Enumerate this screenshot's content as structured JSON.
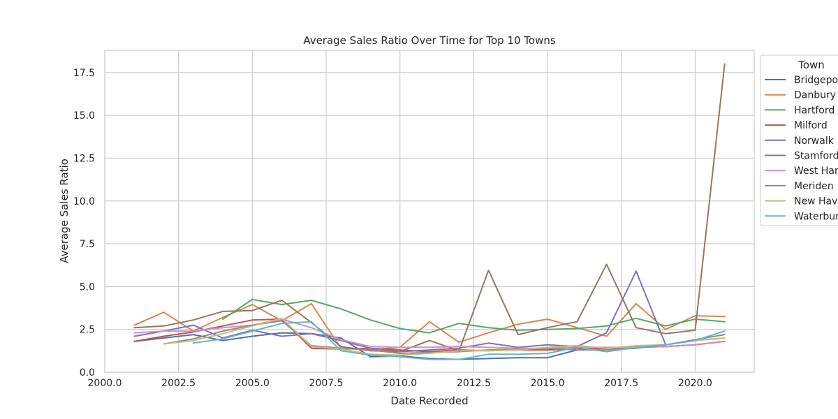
{
  "chart_data": {
    "type": "line",
    "title": "Average Sales Ratio Over Time for Top 10 Towns",
    "xlabel": "Date Recorded",
    "ylabel": "Average Sales Ratio",
    "xlim": [
      2000,
      2022
    ],
    "ylim": [
      0,
      18.8
    ],
    "xticks": [
      2000,
      2002.5,
      2005,
      2007.5,
      2010,
      2012.5,
      2015,
      2017.5,
      2020
    ],
    "xtick_labels": [
      "2000.0",
      "2002.5",
      "2005.0",
      "2007.5",
      "2010.0",
      "2012.5",
      "2015.0",
      "2017.5",
      "2020.0"
    ],
    "yticks": [
      0,
      2.5,
      5,
      7.5,
      10,
      12.5,
      15,
      17.5
    ],
    "ytick_labels": [
      "0.0",
      "2.5",
      "5.0",
      "7.5",
      "10.0",
      "12.5",
      "15.0",
      "17.5"
    ],
    "grid": true,
    "legend": {
      "title": "Town",
      "placement": "outside top-right"
    },
    "series": [
      {
        "name": "Bridgeport",
        "color": "#4c72b0",
        "x": [
          2001,
          2002,
          2003,
          2004,
          2005,
          2006,
          2007,
          2008,
          2009,
          2010,
          2011,
          2012,
          2013,
          2014,
          2015,
          2016,
          2017,
          2018,
          2019,
          2020,
          2021
        ],
        "y": [
          1.8,
          2.0,
          2.2,
          1.85,
          2.1,
          2.3,
          2.25,
          2.0,
          0.9,
          0.95,
          0.8,
          0.75,
          0.8,
          0.85,
          0.85,
          1.3,
          1.4,
          1.45,
          1.5,
          1.6,
          1.8
        ]
      },
      {
        "name": "Danbury",
        "color": "#dd8452",
        "x": [
          2001,
          2002,
          2003,
          2004,
          2005,
          2006,
          2007,
          2008,
          2009,
          2010,
          2011,
          2012,
          2013,
          2014,
          2015,
          2016,
          2017,
          2018,
          2019,
          2020,
          2021
        ],
        "y": [
          2.75,
          3.5,
          2.4,
          3.2,
          3.95,
          3.0,
          4.0,
          1.4,
          1.3,
          1.45,
          2.95,
          1.75,
          2.3,
          2.8,
          3.1,
          2.6,
          2.1,
          4.0,
          2.5,
          3.3,
          3.25
        ]
      },
      {
        "name": "Hartford",
        "color": "#55a868",
        "x": [
          2004,
          2005,
          2006,
          2007,
          2008,
          2009,
          2010,
          2011,
          2012,
          2013,
          2014,
          2015,
          2016,
          2017,
          2018,
          2019,
          2020,
          2021
        ],
        "y": [
          3.1,
          4.25,
          3.95,
          4.2,
          3.7,
          3.05,
          2.55,
          2.3,
          2.85,
          2.6,
          2.45,
          2.5,
          2.55,
          2.7,
          3.15,
          2.7,
          3.1,
          2.95
        ]
      },
      {
        "name": "Milford",
        "color": "#c44e52",
        "x": [
          2001,
          2002,
          2003,
          2004,
          2005,
          2006,
          2007,
          2008,
          2009,
          2010,
          2011,
          2012,
          2013,
          2014,
          2015,
          2016,
          2017,
          2018,
          2019,
          2020,
          2021
        ],
        "y": [
          1.8,
          2.1,
          2.35,
          2.7,
          3.05,
          3.1,
          1.4,
          1.35,
          1.4,
          1.3,
          1.2,
          1.3,
          1.25,
          1.3,
          1.3,
          1.35,
          1.4,
          1.45,
          1.5,
          1.6,
          1.8
        ]
      },
      {
        "name": "Norwalk",
        "color": "#8172b3",
        "x": [
          2001,
          2002,
          2003,
          2004,
          2005,
          2006,
          2007,
          2008,
          2009,
          2010,
          2011,
          2012,
          2013,
          2014,
          2015,
          2016,
          2017,
          2018,
          2019,
          2020,
          2021
        ],
        "y": [
          2.1,
          2.4,
          2.75,
          2.0,
          2.45,
          2.1,
          2.25,
          1.85,
          1.4,
          1.2,
          1.3,
          1.4,
          1.7,
          1.45,
          1.6,
          1.5,
          2.3,
          5.9,
          1.6,
          1.85,
          2.0
        ]
      },
      {
        "name": "Stamford",
        "color": "#937860",
        "x": [
          2001,
          2002,
          2003,
          2004,
          2005,
          2006,
          2007,
          2008,
          2009,
          2010,
          2011,
          2012,
          2013,
          2014,
          2015,
          2016,
          2017,
          2018,
          2019,
          2020,
          2021
        ],
        "y": [
          2.6,
          2.7,
          3.05,
          3.55,
          3.6,
          4.2,
          2.9,
          1.5,
          1.25,
          1.2,
          1.85,
          1.25,
          5.95,
          2.2,
          2.6,
          2.95,
          6.3,
          2.6,
          2.25,
          2.45,
          18.0
        ]
      },
      {
        "name": "West Hartford",
        "color": "#da8bc3",
        "x": [
          2001,
          2002,
          2003,
          2004,
          2005,
          2006,
          2007,
          2008,
          2009,
          2010,
          2011,
          2012,
          2013,
          2014,
          2015,
          2016,
          2017,
          2018,
          2019,
          2020,
          2021
        ],
        "y": [
          2.3,
          2.4,
          2.4,
          2.6,
          2.75,
          3.1,
          2.6,
          1.9,
          1.5,
          1.45,
          1.45,
          1.5,
          1.45,
          1.4,
          1.4,
          1.45,
          1.45,
          1.45,
          1.5,
          1.6,
          1.8
        ]
      },
      {
        "name": "Meriden",
        "color": "#8c8c8c",
        "x": [
          2002,
          2003,
          2004,
          2005,
          2006,
          2007,
          2008,
          2009,
          2010,
          2011,
          2012,
          2013,
          2014,
          2015,
          2016,
          2017,
          2018,
          2019,
          2020,
          2021
        ],
        "y": [
          1.65,
          1.95,
          2.4,
          2.75,
          3.0,
          1.55,
          1.4,
          1.3,
          1.1,
          1.15,
          1.2,
          1.3,
          1.35,
          1.4,
          1.3,
          1.3,
          1.4,
          1.6,
          1.9,
          2.2
        ]
      },
      {
        "name": "New Haven",
        "color": "#ccb974",
        "x": [
          2002,
          2003,
          2004,
          2005,
          2006,
          2007,
          2008,
          2009,
          2010,
          2011,
          2012,
          2013,
          2014,
          2015,
          2016,
          2017,
          2018,
          2019,
          2020,
          2021
        ],
        "y": [
          1.65,
          1.85,
          2.25,
          2.7,
          3.15,
          1.5,
          1.35,
          1.05,
          1.0,
          1.1,
          1.25,
          1.25,
          1.3,
          1.45,
          1.55,
          1.4,
          1.55,
          1.6,
          1.85,
          2.0
        ]
      },
      {
        "name": "Waterbury",
        "color": "#64b5cd",
        "x": [
          2003,
          2004,
          2005,
          2006,
          2007,
          2008,
          2009,
          2010,
          2011,
          2012,
          2013,
          2014,
          2015,
          2016,
          2017,
          2018,
          2019,
          2020,
          2021
        ],
        "y": [
          1.7,
          1.95,
          2.4,
          2.85,
          2.95,
          1.25,
          1.0,
          0.9,
          0.75,
          0.75,
          1.05,
          1.05,
          1.1,
          1.45,
          1.2,
          1.45,
          1.6,
          1.85,
          2.4
        ]
      }
    ]
  }
}
